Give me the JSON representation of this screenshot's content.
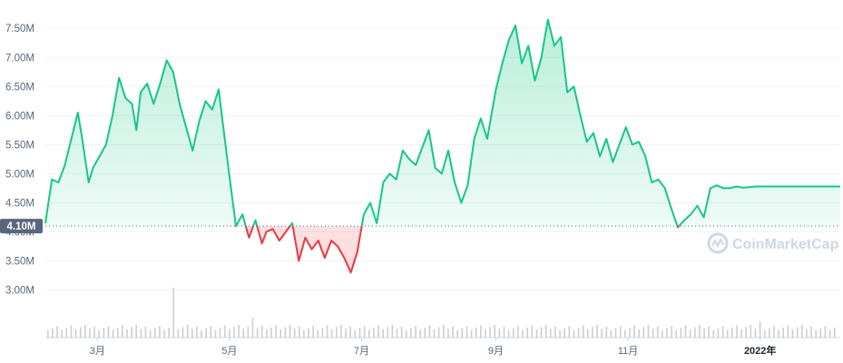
{
  "watermark": "CoinMarketCap",
  "current_label": "4.10M",
  "colors": {
    "up": "#16c784",
    "down": "#ea3943",
    "grid": "#eff2f5",
    "axis_text": "#58667e",
    "volume": "#c9ced6",
    "badge_bg": "#58667e"
  },
  "chart_data": {
    "type": "line",
    "title": "",
    "xlabel": "",
    "ylabel": "",
    "baseline": 4.1,
    "y_ticks": [
      "3.00M",
      "3.50M",
      "4.00M",
      "4.50M",
      "5.00M",
      "5.50M",
      "6.00M",
      "6.50M",
      "7.00M",
      "7.50M"
    ],
    "y_tick_values": [
      3.0,
      3.5,
      4.0,
      4.5,
      5.0,
      5.5,
      6.0,
      6.5,
      7.0,
      7.5
    ],
    "ylim": [
      2.65,
      7.8
    ],
    "x_ticks": [
      "3月",
      "5月",
      "7月",
      "9月",
      "11月",
      "2022年"
    ],
    "x_tick_dates": [
      "2021-03-01",
      "2021-05-01",
      "2021-07-01",
      "2021-09-01",
      "2021-11-01",
      "2022-01-01"
    ],
    "x_range": [
      "2021-02-05",
      "2022-02-07"
    ],
    "grid": true,
    "series": [
      {
        "x": [
          "2021-02-05",
          "2021-02-08",
          "2021-02-11",
          "2021-02-14",
          "2021-02-17",
          "2021-02-20",
          "2021-02-22",
          "2021-02-25",
          "2021-02-27",
          "2021-03-02",
          "2021-03-05",
          "2021-03-08",
          "2021-03-11",
          "2021-03-14",
          "2021-03-17",
          "2021-03-19",
          "2021-03-21",
          "2021-03-24",
          "2021-03-27",
          "2021-03-30",
          "2021-04-02",
          "2021-04-05",
          "2021-04-08",
          "2021-04-11",
          "2021-04-14",
          "2021-04-17",
          "2021-04-20",
          "2021-04-23",
          "2021-04-26",
          "2021-04-28",
          "2021-05-01",
          "2021-05-04",
          "2021-05-07",
          "2021-05-10",
          "2021-05-13",
          "2021-05-16",
          "2021-05-18",
          "2021-05-21",
          "2021-05-24",
          "2021-05-27",
          "2021-05-30",
          "2021-06-02",
          "2021-06-05",
          "2021-06-08",
          "2021-06-11",
          "2021-06-14",
          "2021-06-17",
          "2021-06-20",
          "2021-06-23",
          "2021-06-26",
          "2021-06-29",
          "2021-07-02",
          "2021-07-05",
          "2021-07-08",
          "2021-07-11",
          "2021-07-14",
          "2021-07-17",
          "2021-07-20",
          "2021-07-23",
          "2021-07-26",
          "2021-07-29",
          "2021-08-01",
          "2021-08-04",
          "2021-08-07",
          "2021-08-10",
          "2021-08-13",
          "2021-08-16",
          "2021-08-19",
          "2021-08-22",
          "2021-08-25",
          "2021-08-28",
          "2021-09-01",
          "2021-09-04",
          "2021-09-07",
          "2021-09-10",
          "2021-09-13",
          "2021-09-16",
          "2021-09-19",
          "2021-09-22",
          "2021-09-25",
          "2021-09-28",
          "2021-10-01",
          "2021-10-04",
          "2021-10-07",
          "2021-10-10",
          "2021-10-13",
          "2021-10-16",
          "2021-10-19",
          "2021-10-22",
          "2021-10-25",
          "2021-10-28",
          "2021-10-31",
          "2021-11-03",
          "2021-11-06",
          "2021-11-09",
          "2021-11-12",
          "2021-11-15",
          "2021-11-18",
          "2021-11-21",
          "2021-11-24",
          "2021-11-27",
          "2021-11-30",
          "2021-12-03",
          "2021-12-06",
          "2021-12-09",
          "2021-12-12",
          "2021-12-15",
          "2021-12-18",
          "2021-12-21",
          "2021-12-24",
          "2021-12-27",
          "2021-12-30",
          "2022-01-02",
          "2022-01-05",
          "2022-01-08",
          "2022-01-11",
          "2022-01-14",
          "2022-01-17",
          "2022-01-20",
          "2022-01-23",
          "2022-01-26",
          "2022-01-29",
          "2022-02-01",
          "2022-02-04",
          "2022-02-07"
        ],
        "values": [
          4.15,
          4.9,
          4.85,
          5.15,
          5.6,
          6.05,
          5.6,
          4.85,
          5.1,
          5.3,
          5.5,
          6.0,
          6.65,
          6.3,
          6.2,
          5.75,
          6.4,
          6.55,
          6.2,
          6.55,
          6.95,
          6.75,
          6.2,
          5.8,
          5.4,
          5.9,
          6.25,
          6.1,
          6.45,
          5.85,
          4.95,
          4.1,
          4.3,
          3.9,
          4.2,
          3.8,
          4.0,
          4.05,
          3.85,
          4.0,
          4.15,
          3.5,
          3.9,
          3.7,
          3.85,
          3.55,
          3.85,
          3.75,
          3.55,
          3.3,
          3.65,
          4.3,
          4.5,
          4.15,
          4.85,
          5.0,
          4.9,
          5.4,
          5.25,
          5.15,
          5.45,
          5.75,
          5.1,
          5.0,
          5.4,
          4.85,
          4.5,
          4.8,
          5.6,
          5.95,
          5.6,
          6.45,
          6.9,
          7.3,
          7.55,
          6.9,
          7.2,
          6.6,
          7.0,
          7.65,
          7.2,
          7.35,
          6.4,
          6.5,
          6.0,
          5.55,
          5.7,
          5.3,
          5.6,
          5.2,
          5.5,
          5.8,
          5.5,
          5.55,
          5.3,
          4.85,
          4.9,
          4.75,
          4.4,
          4.08,
          4.2,
          4.3,
          4.45,
          4.25,
          4.75,
          4.8,
          4.75,
          4.75,
          4.78,
          4.76,
          4.77,
          4.78,
          4.78,
          4.78,
          4.78,
          4.78,
          4.78,
          4.78,
          4.78,
          4.78,
          4.78,
          4.78,
          4.78,
          4.78,
          4.78
        ]
      }
    ],
    "volume_bars": 170
  }
}
